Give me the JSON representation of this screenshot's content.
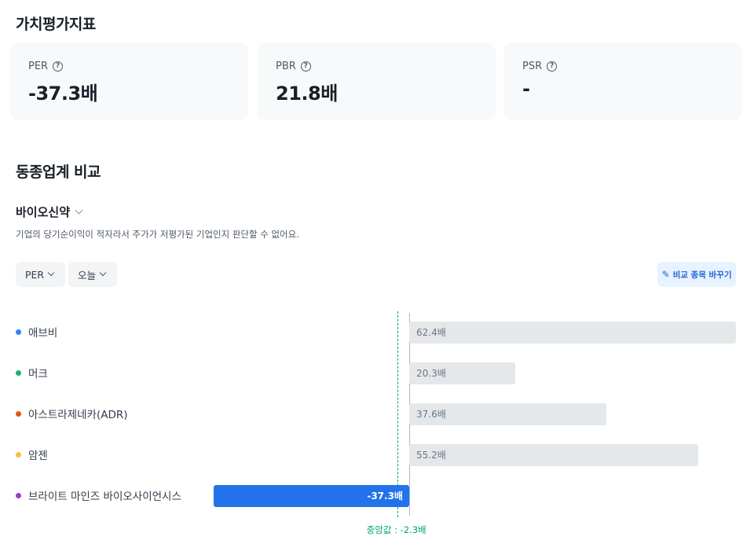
{
  "valuation": {
    "title": "가치평가지표",
    "cards": [
      {
        "label": "PER",
        "value": "-37.3배"
      },
      {
        "label": "PBR",
        "value": "21.8배"
      },
      {
        "label": "PSR",
        "value": "-"
      }
    ],
    "help_icon": "question-circle-icon"
  },
  "peer": {
    "title": "동종업계 비교",
    "industry": "바이오신약",
    "notice": "기업의 당기순이익이 적자라서 주가가 저평가된 기업인지 판단할 수 없어요.",
    "metric_select": "PER",
    "period_select": "오늘",
    "change_button": "비교 종목 바꾸기",
    "change_icon": "pencil-icon",
    "median_label": "중앙값 : -2.3배"
  },
  "chart_data": {
    "type": "bar",
    "orientation": "horizontal",
    "categories": [
      "애브비",
      "머크",
      "아스트라제네카(ADR)",
      "암젠",
      "브라이트 마인즈 바이오사이언시스"
    ],
    "values": [
      62.4,
      20.3,
      37.6,
      55.2,
      -37.3
    ],
    "value_labels": [
      "62.4배",
      "20.3배",
      "37.6배",
      "55.2배",
      "-37.3배"
    ],
    "colors": [
      "#3182f6",
      "#19b36b",
      "#e0580f",
      "#fcbf3c",
      "#9b3bd1"
    ],
    "highlight_index": 4,
    "median": -2.3,
    "unit": "배"
  }
}
